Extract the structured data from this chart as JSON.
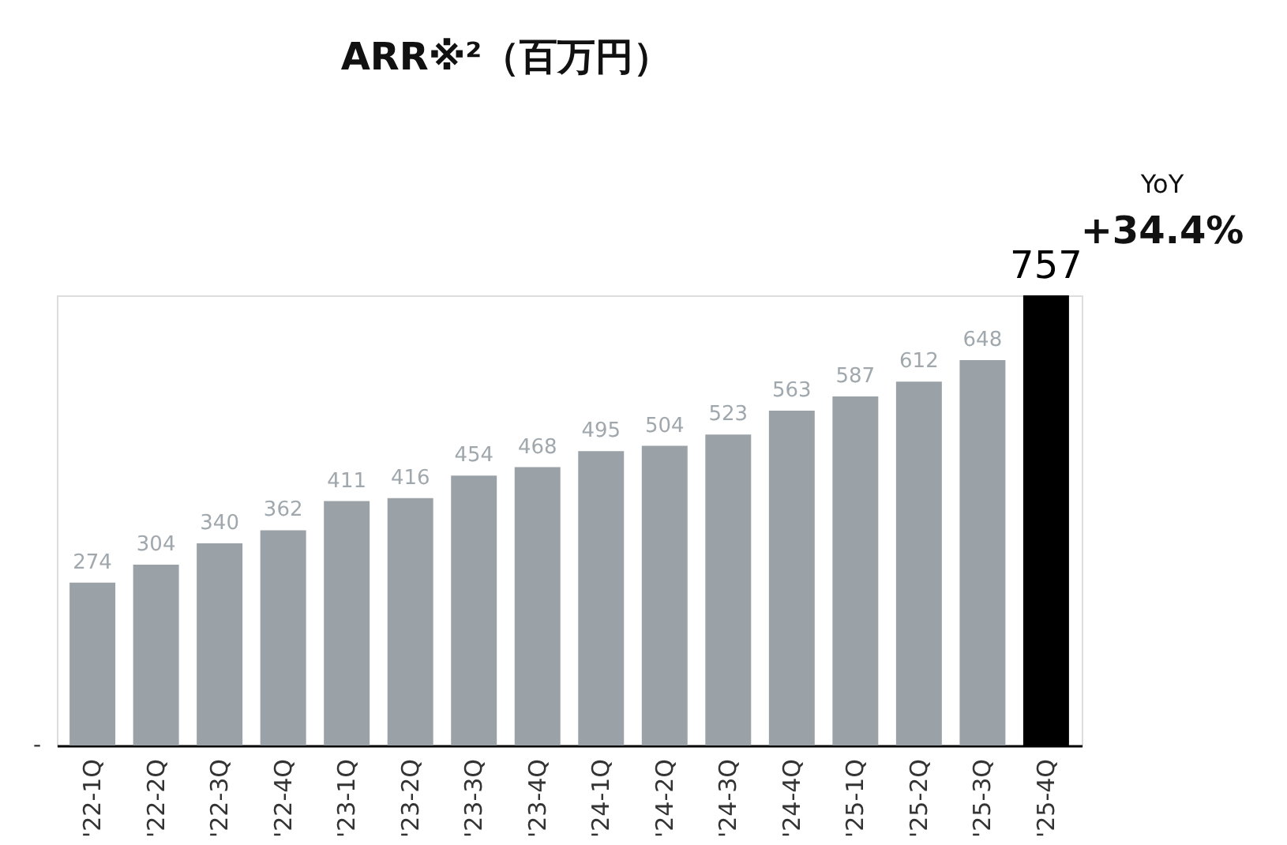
{
  "chart_data": {
    "type": "bar",
    "title": "ARR※²（百万円）",
    "categories": [
      "'22-1Q",
      "'22-2Q",
      "'22-3Q",
      "'22-4Q",
      "'23-1Q",
      "'23-2Q",
      "'23-3Q",
      "'23-4Q",
      "'24-1Q",
      "'24-2Q",
      "'24-3Q",
      "'24-4Q",
      "'25-1Q",
      "'25-2Q",
      "'25-3Q",
      "'25-4Q"
    ],
    "values": [
      274,
      304,
      340,
      362,
      411,
      416,
      454,
      468,
      495,
      504,
      523,
      563,
      587,
      612,
      648,
      757
    ],
    "colors": [
      "#9aa2a8",
      "#9aa2a8",
      "#9aa2a8",
      "#9aa2a8",
      "#9aa2a8",
      "#9aa2a8",
      "#9aa2a8",
      "#9aa2a8",
      "#9aa2a8",
      "#9aa2a8",
      "#9aa2a8",
      "#9aa2a8",
      "#9aa2a8",
      "#9aa2a8",
      "#9aa2a8",
      "#000000"
    ],
    "data_labels": true,
    "grid": false,
    "annotations": [
      "-",
      "YoY",
      "+34.4%"
    ]
  }
}
